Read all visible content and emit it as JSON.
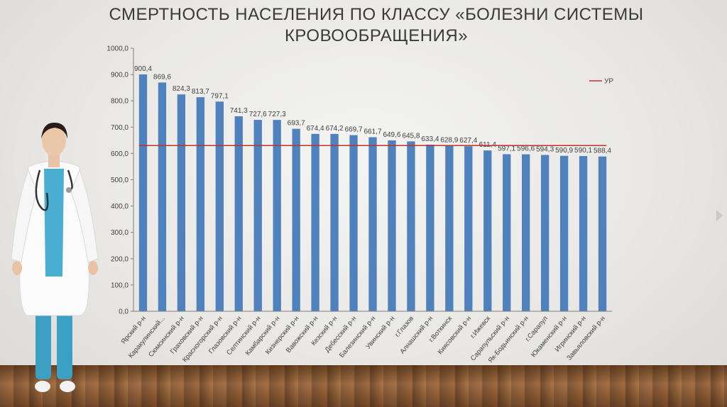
{
  "title": "СМЕРТНОСТЬ НАСЕЛЕНИЯ ПО КЛАССУ «БОЛЕЗНИ СИСТЕМЫ КРОВООБРАЩЕНИЯ»",
  "colors": {
    "bar": "#4f81bd",
    "ref_line": "#c0302c",
    "axis_text": "#404040",
    "title": "#3a3a3a"
  },
  "chart_data": {
    "type": "bar",
    "title": "СМЕРТНОСТЬ НАСЕЛЕНИЯ ПО КЛАССУ «БОЛЕЗНИ СИСТЕМЫ КРОВООБРАЩЕНИЯ»",
    "xlabel": "",
    "ylabel": "",
    "ylim": [
      0,
      1000
    ],
    "yticks": [
      "0,0",
      "100,0",
      "200,0",
      "300,0",
      "400,0",
      "500,0",
      "600,0",
      "700,0",
      "800,0",
      "900,0",
      "1000,0"
    ],
    "grid": false,
    "legend_position": "top-right",
    "categories": [
      "Ярский р-н",
      "Каракулинский...",
      "Сюмсинский р-н",
      "Граховский р-н",
      "Красногорский р-н",
      "Глазовский р-н",
      "Селтинский р-н",
      "Камбарский р-н",
      "Кизнерский р-н",
      "Вавожский р-н",
      "Кезский р-н",
      "Дебесский р-н",
      "Балезинский р-н",
      "Увинский р-н",
      "г.Глазов",
      "Алнашский р-н",
      "г.Воткинск",
      "Киясовский р-н",
      "г.Ижевск",
      "Сарапульский р-н",
      "Як-Бодьинский р-н",
      "г.Сарапул",
      "Юкаменский р-н",
      "Игринский р-н",
      "Завьяловский р-н"
    ],
    "series": [
      {
        "values": [
          900.4,
          869.6,
          824.3,
          813.7,
          797.1,
          741.3,
          727.6,
          727.3,
          693.7,
          674.4,
          674.2,
          669.7,
          661.7,
          649.6,
          645.8,
          633.4,
          628.9,
          627.4,
          611.4,
          597.1,
          596.6,
          594.3,
          590.9,
          590.1,
          588.4
        ],
        "labels": [
          "900,4",
          "869,6",
          "824,3",
          "813,7",
          "797,1",
          "741,3",
          "727,6",
          "727,3",
          "693,7",
          "674,4",
          "674,2",
          "669,7",
          "661,7",
          "649,6",
          "645,8",
          "633,4",
          "628,9",
          "627,4",
          "611,4",
          "597,1",
          "596,6",
          "594,3",
          "590,9",
          "590,1",
          "588,4"
        ]
      }
    ],
    "reference_line": {
      "name": "УР",
      "value": 630.0
    }
  }
}
